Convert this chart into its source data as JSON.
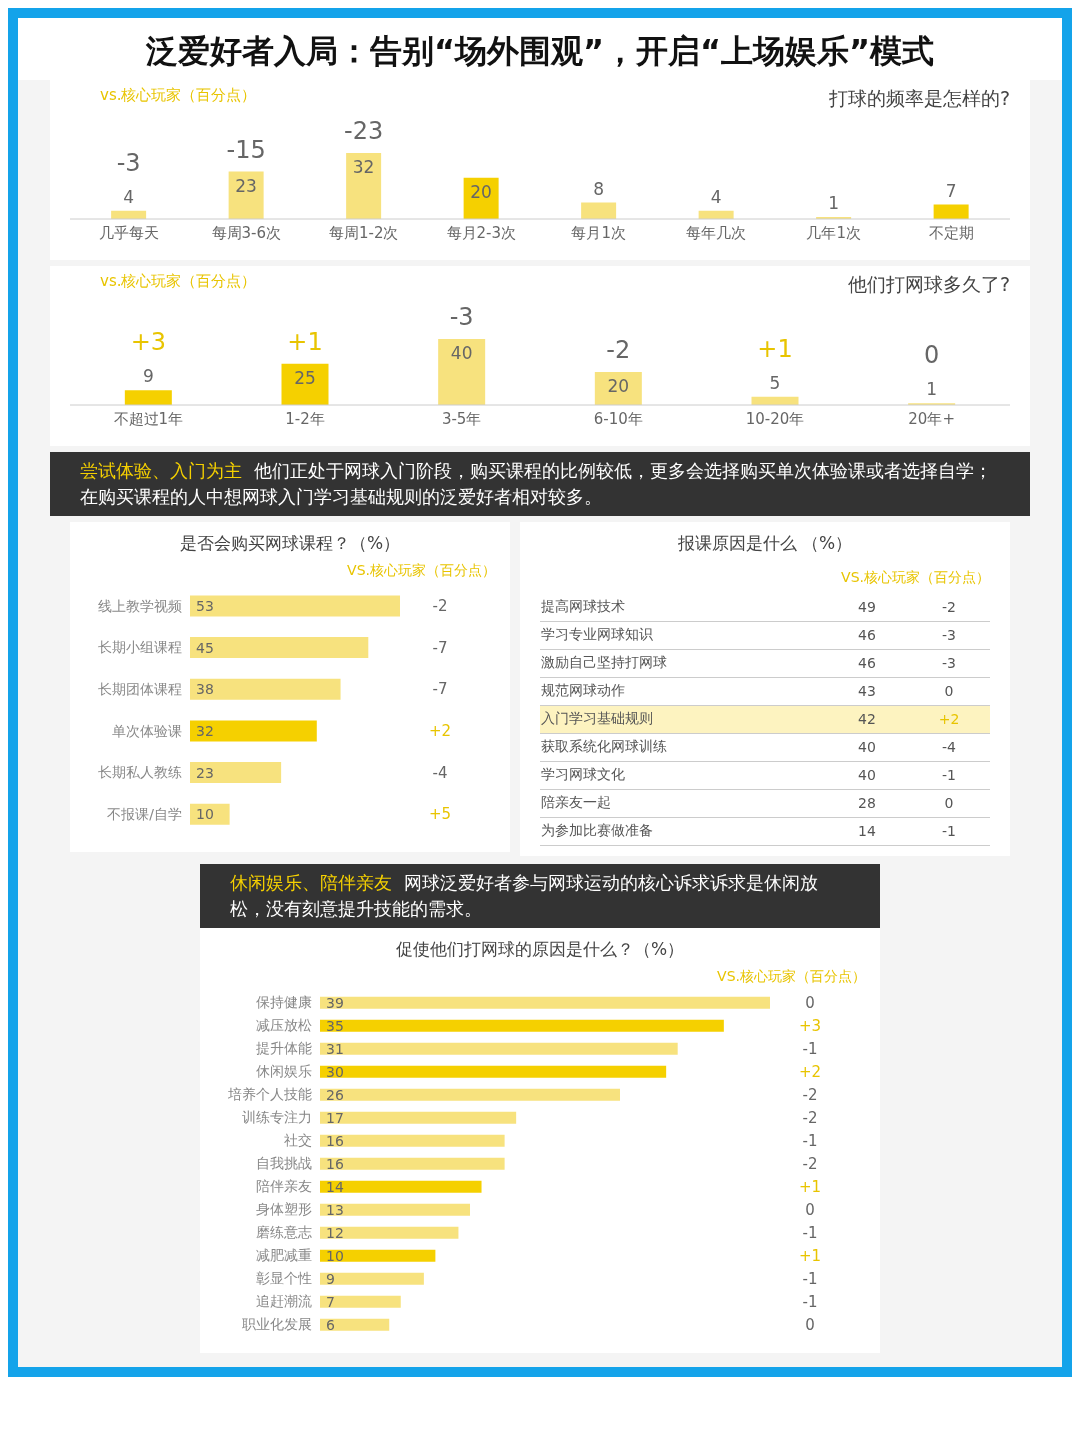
{
  "chart_data": [
    {
      "type": "other",
      "title": "泛爱好者入局：告别“场外围观”，开启“上场娱乐”模式"
    },
    {
      "type": "bar",
      "title": "打球的频率是怎样的?",
      "categories": [
        "几乎每天",
        "每周3-6次",
        "每周1-2次",
        "每月2-3次",
        "每月1次",
        "每年几次",
        "几年1次",
        "不定期"
      ],
      "values": [
        4,
        23,
        32,
        20,
        8,
        4,
        1,
        7
      ],
      "colors": [
        "#f7e27e",
        "#f7e27e",
        "#f7e27e",
        "#f5d000",
        "#f7e27e",
        "#f7e27e",
        "#f7e27e",
        "#f5d000"
      ],
      "data_labels": true,
      "tick_labels": "x",
      "annotations": [
        "vs.核心玩家（百分点）",
        "-3",
        "-15",
        "-23"
      ]
    },
    {
      "type": "bar",
      "title": "他们打网球多久了?",
      "categories": [
        "不超过1年",
        "1-2年",
        "3-5年",
        "6-10年",
        "10-20年",
        "20年+"
      ],
      "values": [
        9,
        25,
        40,
        20,
        5,
        1
      ],
      "colors": [
        "#f5d000",
        "#f5d000",
        "#f7e27e",
        "#f7e27e",
        "#f7e27e",
        "#f7e27e"
      ],
      "data_labels": true,
      "tick_labels": "x",
      "annotations": [
        "vs.核心玩家（百分点）",
        "+3",
        "+1",
        "-3",
        "-2",
        "+1",
        "0"
      ]
    },
    {
      "type": "other",
      "title": "尝试体验、入门为主",
      "annotations": [
        "他们正处于网球入门阶段，购买课程的比例较低，更多会选择购买单次体验课或者选择自学；在购买课程的人中想网球入门学习基础规则的泛爱好者相对较多。"
      ]
    },
    {
      "type": "bar",
      "orientation": "horizontal",
      "title": "是否会购买网球课程？（%）",
      "categories": [
        "线上教学视频",
        "长期小组课程",
        "长期团体课程",
        "单次体验课",
        "长期私人教练",
        "不报课/自学"
      ],
      "values": [
        53,
        45,
        38,
        32,
        23,
        10
      ],
      "colors": [
        "#f7e27e",
        "#f7e27e",
        "#f7e27e",
        "#f5d000",
        "#f7e27e",
        "#f7e27e"
      ],
      "data_labels": true,
      "tick_labels": "y",
      "annotations": [
        "VS.核心玩家（百分点）",
        "-2",
        "-7",
        "-7",
        "+2",
        "-4",
        "+5"
      ]
    },
    {
      "type": "other",
      "title": "报课原因是什么 （%）",
      "categories": [
        "提高网球技术",
        "学习专业网球知识",
        "激励自己坚持打网球",
        "规范网球动作",
        "入门学习基础规则",
        "获取系统化网球训练",
        "学习网球文化",
        "陪亲友一起",
        "为参加比赛做准备"
      ],
      "values": [
        49,
        46,
        46,
        43,
        42,
        40,
        40,
        28,
        14
      ],
      "colors": [
        "#ffffff",
        "#ffffff",
        "#ffffff",
        "#ffffff",
        "#fdf3c0",
        "#ffffff",
        "#ffffff",
        "#ffffff",
        "#ffffff"
      ],
      "data_labels": true,
      "annotations": [
        "VS.核心玩家（百分点）",
        "-2",
        "-3",
        "-3",
        "0",
        "+2",
        "-4",
        "-1",
        "0",
        "-1"
      ]
    },
    {
      "type": "other",
      "title": "休闲娱乐、陪伴亲友",
      "annotations": [
        "网球泛爱好者参与网球运动的核心诉求诉求是休闲放松，没有刻意提升技能的需求。"
      ]
    },
    {
      "type": "bar",
      "orientation": "horizontal",
      "title": "促使他们打网球的原因是什么？（%）",
      "categories": [
        "保持健康",
        "减压放松",
        "提升体能",
        "休闲娱乐",
        "培养个人技能",
        "训练专注力",
        "社交",
        "自我挑战",
        "陪伴亲友",
        "身体塑形",
        "磨练意志",
        "减肥减重",
        "彰显个性",
        "追赶潮流",
        "职业化发展"
      ],
      "values": [
        39,
        35,
        31,
        30,
        26,
        17,
        16,
        16,
        14,
        13,
        12,
        10,
        9,
        7,
        6
      ],
      "colors": [
        "#f7e27e",
        "#f5d000",
        "#f7e27e",
        "#f5d000",
        "#f7e27e",
        "#f7e27e",
        "#f7e27e",
        "#f7e27e",
        "#f5d000",
        "#f7e27e",
        "#f7e27e",
        "#f5d000",
        "#f7e27e",
        "#f7e27e",
        "#f7e27e"
      ],
      "data_labels": true,
      "tick_labels": "y",
      "annotations": [
        "VS.核心玩家（百分点）",
        "0",
        "+3",
        "-1",
        "+2",
        "-2",
        "-2",
        "-1",
        "-2",
        "+1",
        "0",
        "-1",
        "+1",
        "-1",
        "-1",
        "0"
      ]
    }
  ]
}
